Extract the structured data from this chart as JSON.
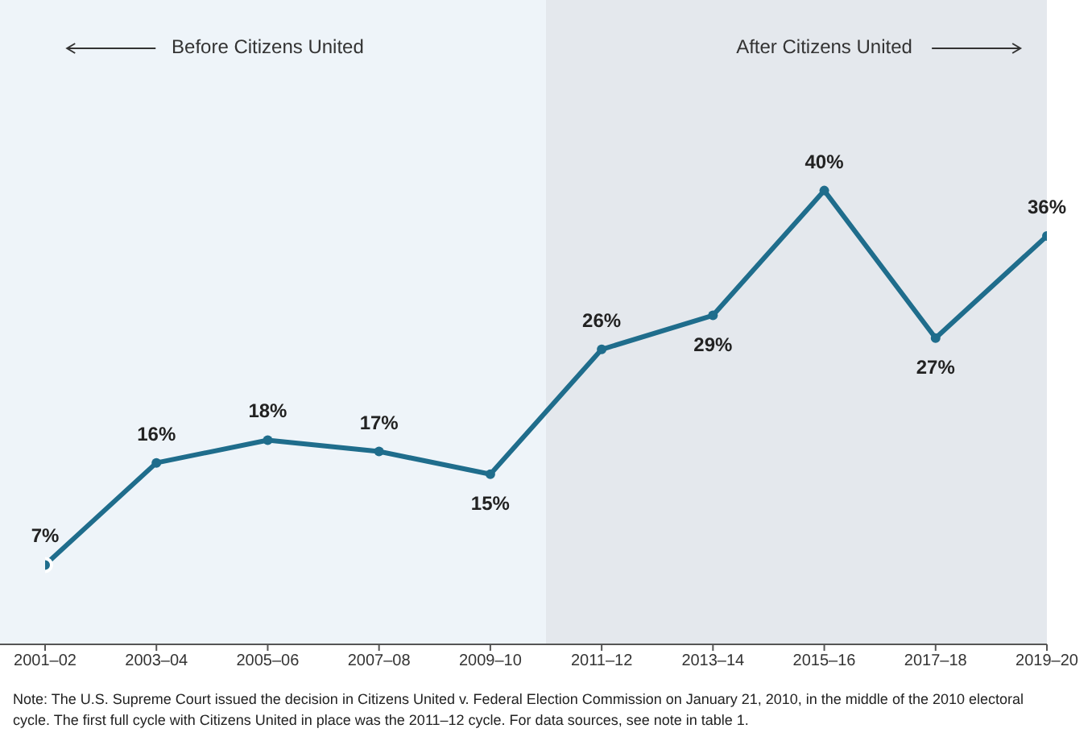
{
  "chart_data": {
    "type": "line",
    "categories": [
      "2001–02",
      "2003–04",
      "2005–06",
      "2007–08",
      "2009–10",
      "2011–12",
      "2013–14",
      "2015–16",
      "2017–18",
      "2019–20"
    ],
    "series": [
      {
        "color": "#1f6d8c",
        "values": [
          7,
          16,
          18,
          17,
          15,
          26,
          29,
          40,
          27,
          36
        ],
        "value_labels": [
          "7%",
          "16%",
          "18%",
          "17%",
          "15%",
          "26%",
          "29%",
          "40%",
          "27%",
          "36%"
        ]
      }
    ],
    "marker": "circle",
    "grid": false,
    "legend": false,
    "bands": [
      {
        "axis": "x",
        "from": "2001–02",
        "to": "2009–10",
        "label": "Before Citizens United",
        "color": "#eef4f9"
      },
      {
        "axis": "x",
        "from": "2011–12",
        "to": "2019–20",
        "label": "After Citizens United",
        "color": "#e4e8ed"
      }
    ],
    "annotations": [
      "Note: The U.S. Supreme Court issued the decision in Citizens United v. Federal Election Commission on January 21, 2010, in the middle of the 2010 electoral cycle. The first full cycle with Citizens United in place was the 2011–12 cycle. For data sources, see note in table 1."
    ]
  }
}
